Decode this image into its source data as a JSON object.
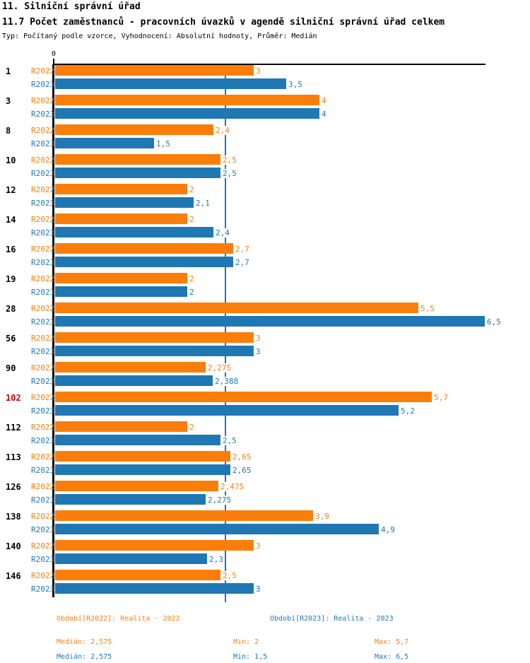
{
  "header": {
    "title": "11. Silniční správní úřad",
    "subtitle": "11.7 Počet zaměstnanců - pracovních úvazků v agendě silniční správní úřad celkem",
    "meta": "Typ: Počítaný podle vzorce, Vyhodnocení: Absolutní hodnoty, Průměr: Medián"
  },
  "colors": {
    "r2022": "#fb7e0b",
    "r2023": "#1f77b4",
    "highlight_category": "#cc0000",
    "axis": "#000000"
  },
  "chart_data": {
    "type": "bar",
    "orientation": "horizontal",
    "title": "11.7 Počet zaměstnanců - pracovních úvazků v agendě silniční správní úřad celkem",
    "xlabel": "",
    "ylabel": "",
    "axis": {
      "zero_label": "0",
      "max": 6.53,
      "median_value": 2.575
    },
    "grid": false,
    "legend_position": "bottom",
    "categories": [
      "1",
      "3",
      "8",
      "10",
      "12",
      "14",
      "16",
      "19",
      "28",
      "56",
      "90",
      "102",
      "112",
      "113",
      "126",
      "138",
      "140",
      "146"
    ],
    "highlighted_categories": [
      "102"
    ],
    "series": [
      {
        "name": "R2022",
        "values": [
          3,
          4,
          2.4,
          2.5,
          2,
          2,
          2.7,
          2,
          5.5,
          3,
          2.275,
          5.7,
          2,
          2.65,
          2.475,
          3.9,
          3,
          2.5
        ],
        "labels": [
          "3",
          "4",
          "2,4",
          "2,5",
          "2",
          "2",
          "2,7",
          "2",
          "5,5",
          "3",
          "2,275",
          "5,7",
          "2",
          "2,65",
          "2,475",
          "3,9",
          "3",
          "2,5"
        ]
      },
      {
        "name": "R2023",
        "values": [
          3.5,
          4,
          1.5,
          2.5,
          2.1,
          2.4,
          2.7,
          2,
          6.5,
          3,
          2.388,
          5.2,
          2.5,
          2.65,
          2.275,
          4.9,
          2.3,
          3
        ],
        "labels": [
          "3,5",
          "4",
          "1,5",
          "2,5",
          "2,1",
          "2,4",
          "2,7",
          "2",
          "6,5",
          "3",
          "2,388",
          "5,2",
          "2,5",
          "2,65",
          "2,275",
          "4,9",
          "2,3",
          "3"
        ]
      }
    ]
  },
  "legend": {
    "r2022_title": "Období[R2022]: Realita - 2022",
    "r2023_title": "Období[R2023]: Realita - 2023",
    "r2022_stats": {
      "median": "Medián: 2,575",
      "min": "Min: 2",
      "max": "Max: 5,7"
    },
    "r2023_stats": {
      "median": "Medián: 2,575",
      "min": "Min: 1,5",
      "max": "Max: 6,5"
    }
  }
}
